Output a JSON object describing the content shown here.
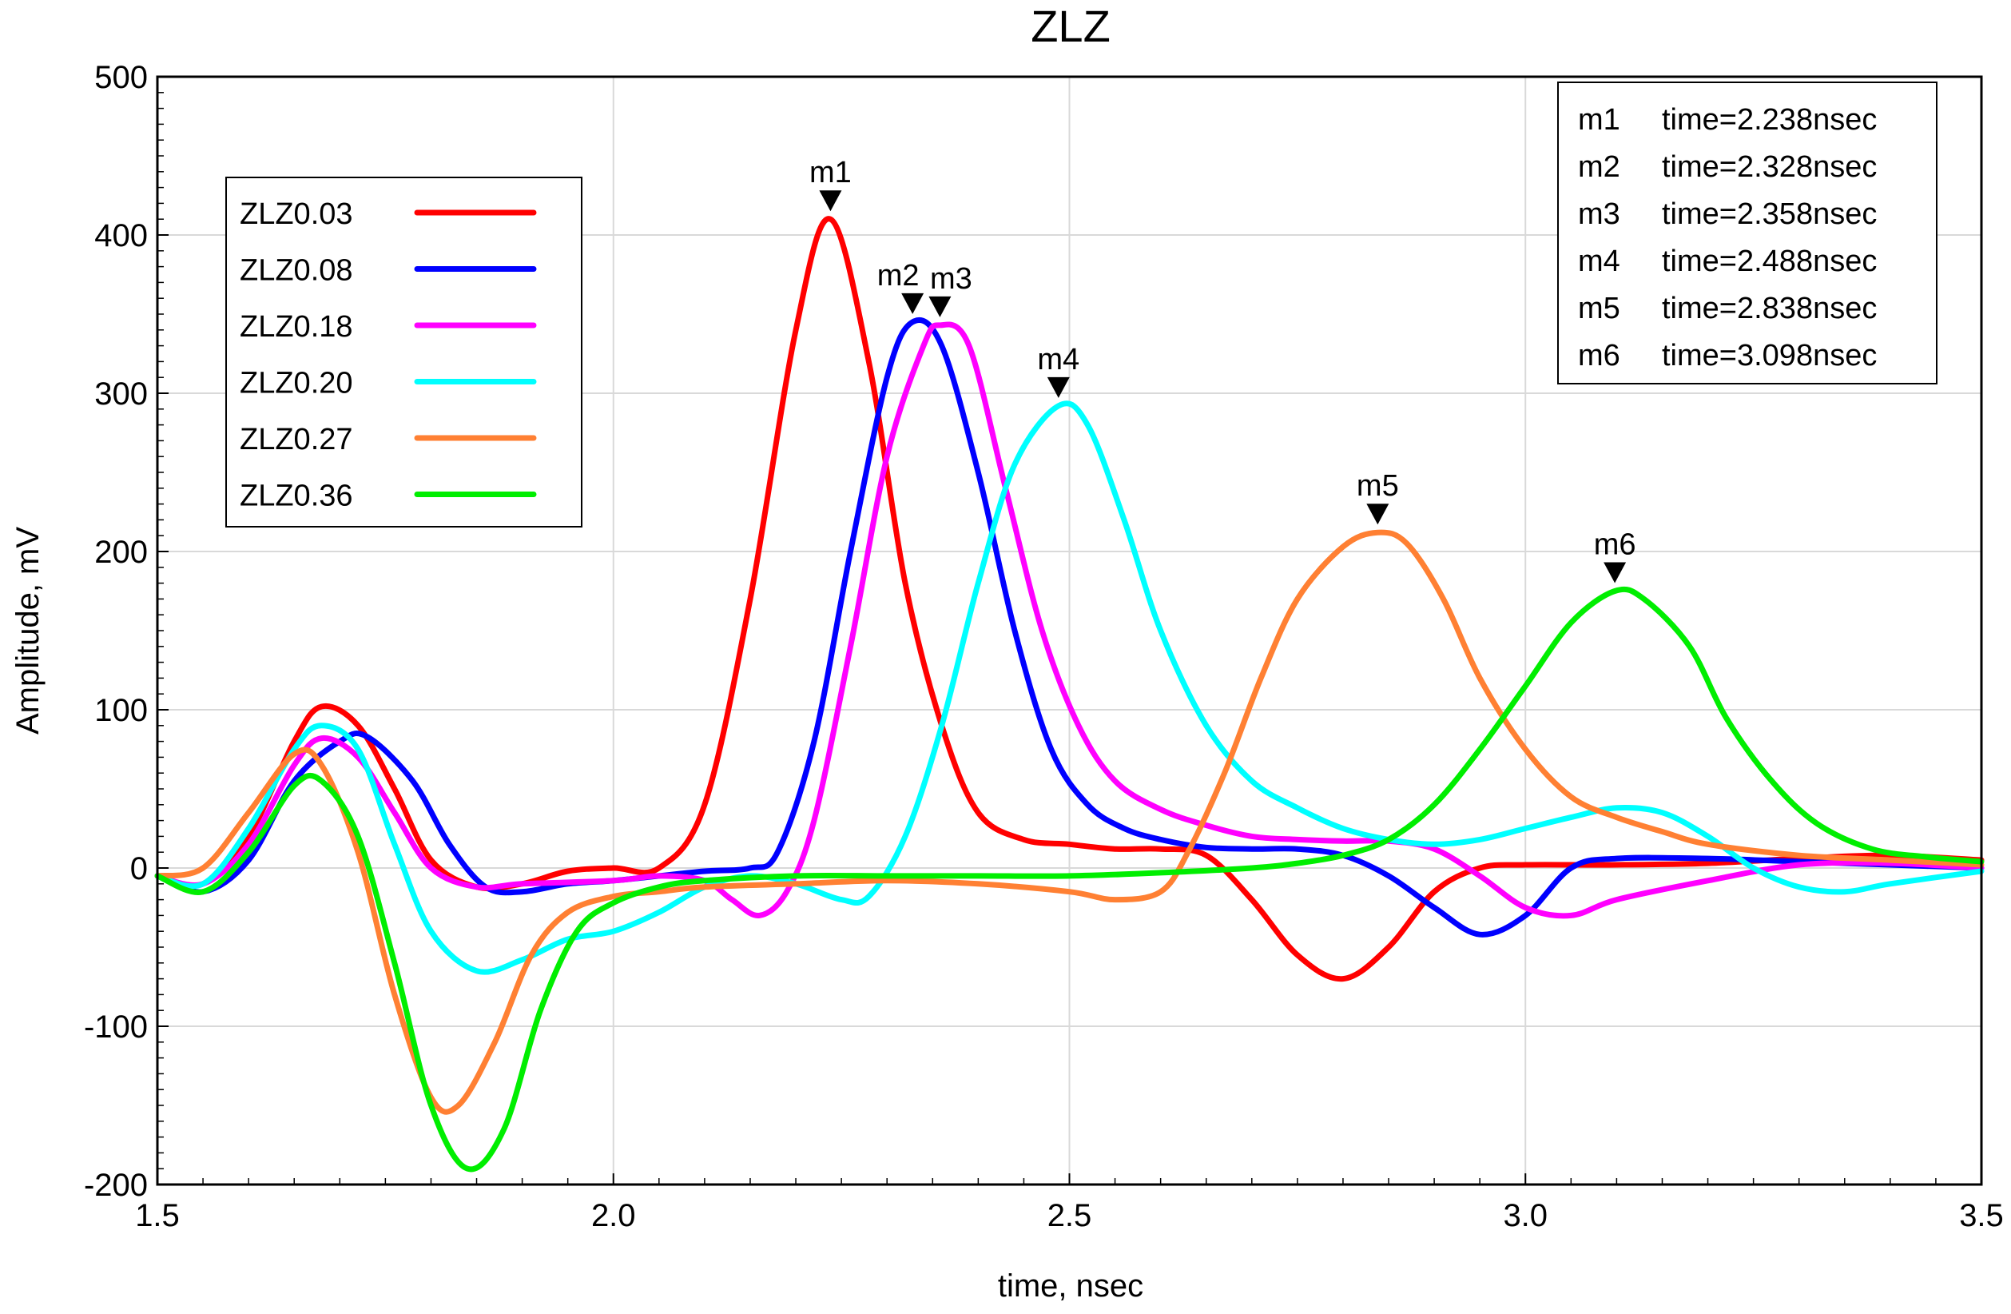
{
  "chart_data": {
    "type": "line",
    "title": "ZLZ",
    "xlabel": "time, nsec",
    "ylabel": "Amplitude, mV",
    "xlim": [
      1.5,
      3.5
    ],
    "ylim": [
      -200,
      500
    ],
    "xticks": [
      1.5,
      2.0,
      2.5,
      3.0,
      3.5
    ],
    "xtick_labels": [
      "1.5",
      "2.0",
      "2.5",
      "3.0",
      "3.5"
    ],
    "yticks": [
      -200,
      -100,
      0,
      100,
      200,
      300,
      400,
      500
    ],
    "ytick_labels": [
      "-200",
      "-100",
      "0",
      "100",
      "200",
      "300",
      "400",
      "500"
    ],
    "grid": true,
    "legend_position": "top-left",
    "series": [
      {
        "name": "ZLZ0.03",
        "color": "#ff0000",
        "points": [
          [
            1.5,
            -5
          ],
          [
            1.55,
            -10
          ],
          [
            1.6,
            20
          ],
          [
            1.65,
            80
          ],
          [
            1.68,
            102
          ],
          [
            1.72,
            90
          ],
          [
            1.76,
            50
          ],
          [
            1.8,
            5
          ],
          [
            1.85,
            -12
          ],
          [
            1.9,
            -10
          ],
          [
            1.95,
            -2
          ],
          [
            2.0,
            0
          ],
          [
            2.05,
            0
          ],
          [
            2.1,
            40
          ],
          [
            2.15,
            170
          ],
          [
            2.2,
            340
          ],
          [
            2.238,
            410
          ],
          [
            2.28,
            320
          ],
          [
            2.32,
            180
          ],
          [
            2.36,
            90
          ],
          [
            2.4,
            35
          ],
          [
            2.45,
            18
          ],
          [
            2.5,
            15
          ],
          [
            2.55,
            12
          ],
          [
            2.6,
            12
          ],
          [
            2.65,
            8
          ],
          [
            2.7,
            -20
          ],
          [
            2.75,
            -55
          ],
          [
            2.8,
            -70
          ],
          [
            2.85,
            -50
          ],
          [
            2.9,
            -15
          ],
          [
            2.95,
            0
          ],
          [
            3.0,
            2
          ],
          [
            3.1,
            2
          ],
          [
            3.2,
            3
          ],
          [
            3.3,
            6
          ],
          [
            3.4,
            8
          ],
          [
            3.5,
            5
          ]
        ]
      },
      {
        "name": "ZLZ0.08",
        "color": "#0000ff",
        "points": [
          [
            1.5,
            -5
          ],
          [
            1.55,
            -15
          ],
          [
            1.6,
            5
          ],
          [
            1.65,
            55
          ],
          [
            1.7,
            80
          ],
          [
            1.73,
            83
          ],
          [
            1.78,
            55
          ],
          [
            1.82,
            15
          ],
          [
            1.86,
            -12
          ],
          [
            1.9,
            -15
          ],
          [
            1.95,
            -10
          ],
          [
            2.0,
            -8
          ],
          [
            2.05,
            -5
          ],
          [
            2.1,
            -2
          ],
          [
            2.15,
            0
          ],
          [
            2.18,
            10
          ],
          [
            2.22,
            80
          ],
          [
            2.26,
            200
          ],
          [
            2.3,
            310
          ],
          [
            2.328,
            345
          ],
          [
            2.36,
            330
          ],
          [
            2.4,
            250
          ],
          [
            2.44,
            150
          ],
          [
            2.48,
            75
          ],
          [
            2.52,
            40
          ],
          [
            2.56,
            25
          ],
          [
            2.6,
            18
          ],
          [
            2.65,
            13
          ],
          [
            2.7,
            12
          ],
          [
            2.75,
            12
          ],
          [
            2.8,
            8
          ],
          [
            2.85,
            -5
          ],
          [
            2.9,
            -25
          ],
          [
            2.95,
            -42
          ],
          [
            3.0,
            -30
          ],
          [
            3.05,
            0
          ],
          [
            3.1,
            6
          ],
          [
            3.2,
            6
          ],
          [
            3.3,
            4
          ],
          [
            3.4,
            2
          ],
          [
            3.5,
            0
          ]
        ]
      },
      {
        "name": "ZLZ0.18",
        "color": "#ff00ff",
        "points": [
          [
            1.5,
            -5
          ],
          [
            1.55,
            -10
          ],
          [
            1.6,
            15
          ],
          [
            1.65,
            65
          ],
          [
            1.68,
            82
          ],
          [
            1.72,
            70
          ],
          [
            1.76,
            35
          ],
          [
            1.8,
            0
          ],
          [
            1.85,
            -12
          ],
          [
            1.9,
            -10
          ],
          [
            2.0,
            -8
          ],
          [
            2.05,
            -5
          ],
          [
            2.1,
            -8
          ],
          [
            2.13,
            -20
          ],
          [
            2.16,
            -30
          ],
          [
            2.19,
            -15
          ],
          [
            2.22,
            30
          ],
          [
            2.26,
            140
          ],
          [
            2.3,
            260
          ],
          [
            2.34,
            330
          ],
          [
            2.358,
            343
          ],
          [
            2.39,
            330
          ],
          [
            2.43,
            240
          ],
          [
            2.47,
            150
          ],
          [
            2.51,
            90
          ],
          [
            2.55,
            55
          ],
          [
            2.6,
            37
          ],
          [
            2.65,
            27
          ],
          [
            2.7,
            20
          ],
          [
            2.75,
            18
          ],
          [
            2.8,
            17
          ],
          [
            2.85,
            17
          ],
          [
            2.9,
            12
          ],
          [
            2.95,
            -5
          ],
          [
            3.0,
            -25
          ],
          [
            3.05,
            -30
          ],
          [
            3.1,
            -20
          ],
          [
            3.2,
            -8
          ],
          [
            3.3,
            2
          ],
          [
            3.4,
            3
          ],
          [
            3.5,
            0
          ]
        ]
      },
      {
        "name": "ZLZ0.20",
        "color": "#00ffff",
        "points": [
          [
            1.5,
            -5
          ],
          [
            1.55,
            -10
          ],
          [
            1.6,
            25
          ],
          [
            1.65,
            75
          ],
          [
            1.68,
            90
          ],
          [
            1.72,
            75
          ],
          [
            1.76,
            15
          ],
          [
            1.8,
            -40
          ],
          [
            1.85,
            -65
          ],
          [
            1.9,
            -58
          ],
          [
            1.95,
            -45
          ],
          [
            2.0,
            -40
          ],
          [
            2.05,
            -28
          ],
          [
            2.1,
            -12
          ],
          [
            2.15,
            -5
          ],
          [
            2.2,
            -10
          ],
          [
            2.25,
            -20
          ],
          [
            2.28,
            -18
          ],
          [
            2.32,
            20
          ],
          [
            2.36,
            90
          ],
          [
            2.4,
            180
          ],
          [
            2.44,
            255
          ],
          [
            2.488,
            292
          ],
          [
            2.52,
            280
          ],
          [
            2.56,
            220
          ],
          [
            2.6,
            150
          ],
          [
            2.65,
            90
          ],
          [
            2.7,
            55
          ],
          [
            2.75,
            38
          ],
          [
            2.8,
            25
          ],
          [
            2.85,
            18
          ],
          [
            2.9,
            15
          ],
          [
            2.95,
            18
          ],
          [
            3.0,
            25
          ],
          [
            3.05,
            32
          ],
          [
            3.1,
            38
          ],
          [
            3.15,
            35
          ],
          [
            3.2,
            20
          ],
          [
            3.25,
            0
          ],
          [
            3.3,
            -12
          ],
          [
            3.35,
            -15
          ],
          [
            3.4,
            -10
          ],
          [
            3.5,
            -2
          ]
        ]
      },
      {
        "name": "ZLZ0.27",
        "color": "#ff8033",
        "points": [
          [
            1.5,
            -5
          ],
          [
            1.55,
            0
          ],
          [
            1.6,
            35
          ],
          [
            1.65,
            72
          ],
          [
            1.68,
            65
          ],
          [
            1.72,
            10
          ],
          [
            1.76,
            -80
          ],
          [
            1.8,
            -145
          ],
          [
            1.83,
            -150
          ],
          [
            1.87,
            -110
          ],
          [
            1.91,
            -55
          ],
          [
            1.95,
            -28
          ],
          [
            2.0,
            -18
          ],
          [
            2.05,
            -15
          ],
          [
            2.1,
            -12
          ],
          [
            2.2,
            -10
          ],
          [
            2.3,
            -8
          ],
          [
            2.4,
            -10
          ],
          [
            2.5,
            -15
          ],
          [
            2.55,
            -20
          ],
          [
            2.6,
            -15
          ],
          [
            2.63,
            10
          ],
          [
            2.67,
            60
          ],
          [
            2.71,
            120
          ],
          [
            2.75,
            170
          ],
          [
            2.8,
            203
          ],
          [
            2.838,
            212
          ],
          [
            2.87,
            205
          ],
          [
            2.91,
            170
          ],
          [
            2.95,
            120
          ],
          [
            3.0,
            75
          ],
          [
            3.05,
            45
          ],
          [
            3.1,
            32
          ],
          [
            3.15,
            23
          ],
          [
            3.2,
            15
          ],
          [
            3.3,
            8
          ],
          [
            3.4,
            5
          ],
          [
            3.5,
            2
          ]
        ]
      },
      {
        "name": "ZLZ0.36",
        "color": "#00ee00",
        "points": [
          [
            1.5,
            -5
          ],
          [
            1.55,
            -15
          ],
          [
            1.6,
            10
          ],
          [
            1.65,
            52
          ],
          [
            1.68,
            55
          ],
          [
            1.72,
            20
          ],
          [
            1.76,
            -60
          ],
          [
            1.8,
            -150
          ],
          [
            1.84,
            -190
          ],
          [
            1.88,
            -165
          ],
          [
            1.92,
            -90
          ],
          [
            1.96,
            -40
          ],
          [
            2.0,
            -22
          ],
          [
            2.05,
            -12
          ],
          [
            2.1,
            -8
          ],
          [
            2.2,
            -5
          ],
          [
            2.3,
            -5
          ],
          [
            2.4,
            -5
          ],
          [
            2.5,
            -5
          ],
          [
            2.6,
            -3
          ],
          [
            2.7,
            0
          ],
          [
            2.75,
            3
          ],
          [
            2.8,
            8
          ],
          [
            2.85,
            18
          ],
          [
            2.9,
            40
          ],
          [
            2.95,
            75
          ],
          [
            3.0,
            115
          ],
          [
            3.05,
            155
          ],
          [
            3.098,
            175
          ],
          [
            3.13,
            170
          ],
          [
            3.18,
            140
          ],
          [
            3.22,
            95
          ],
          [
            3.27,
            55
          ],
          [
            3.32,
            28
          ],
          [
            3.38,
            12
          ],
          [
            3.44,
            7
          ],
          [
            3.5,
            4
          ]
        ]
      }
    ],
    "markers": [
      {
        "label": "m1",
        "series": "ZLZ0.03",
        "x": 2.238,
        "y": 410
      },
      {
        "label": "m2",
        "series": "ZLZ0.08",
        "x": 2.328,
        "y": 345
      },
      {
        "label": "m3",
        "series": "ZLZ0.18",
        "x": 2.358,
        "y": 343
      },
      {
        "label": "m4",
        "series": "ZLZ0.20",
        "x": 2.488,
        "y": 292
      },
      {
        "label": "m5",
        "series": "ZLZ0.27",
        "x": 2.838,
        "y": 212
      },
      {
        "label": "m6",
        "series": "ZLZ0.36",
        "x": 3.098,
        "y": 175
      }
    ],
    "marker_table": [
      {
        "label": "m1",
        "text": "time=2.238nsec"
      },
      {
        "label": "m2",
        "text": "time=2.328nsec"
      },
      {
        "label": "m3",
        "text": "time=2.358nsec"
      },
      {
        "label": "m4",
        "text": "time=2.488nsec"
      },
      {
        "label": "m5",
        "text": "time=2.838nsec"
      },
      {
        "label": "m6",
        "text": "time=3.098nsec"
      }
    ]
  }
}
